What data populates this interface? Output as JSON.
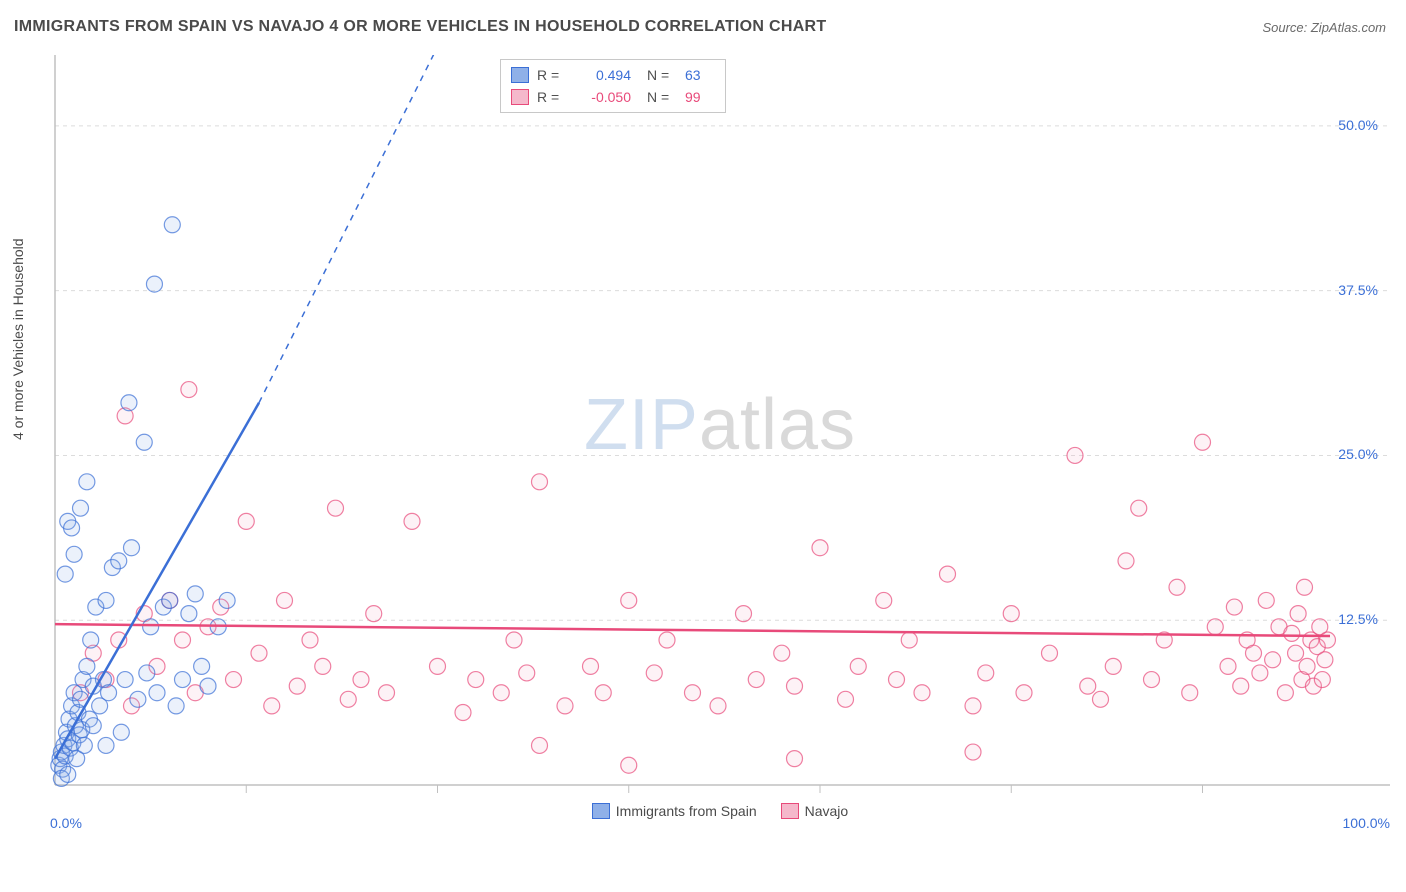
{
  "title": "IMMIGRANTS FROM SPAIN VS NAVAJO 4 OR MORE VEHICLES IN HOUSEHOLD CORRELATION CHART",
  "source": "Source: ZipAtlas.com",
  "y_axis_label": "4 or more Vehicles in Household",
  "watermark": {
    "left": "ZIP",
    "right": "atlas"
  },
  "chart": {
    "type": "scatter",
    "background_color": "#ffffff",
    "axis_line_color": "#c0c0c0",
    "grid_color": "#dcdcdc",
    "grid_dash": "4,4",
    "tick_label_color": "#3b6fd6",
    "xlim": [
      0,
      100
    ],
    "ylim": [
      0,
      55
    ],
    "x_ticks_major": [
      0,
      100
    ],
    "x_ticks_minor": [
      15,
      30,
      45,
      60,
      75,
      90
    ],
    "y_ticks": [
      12.5,
      25.0,
      37.5,
      50.0
    ],
    "x_tick_labels": [
      "0.0%",
      "100.0%"
    ],
    "y_tick_labels": [
      "12.5%",
      "25.0%",
      "37.5%",
      "50.0%"
    ],
    "marker_radius": 8,
    "marker_stroke_width": 1.2,
    "marker_fill_opacity": 0.18,
    "series": [
      {
        "name": "Immigrants from Spain",
        "color": "#3b6fd6",
        "fill": "#8fb0e8",
        "r": "0.494",
        "n": "63",
        "trend": {
          "x1": 0,
          "y1": 2,
          "x2": 16,
          "y2": 29,
          "extend_x2": 30,
          "extend_y2": 56,
          "stroke_width": 2.5,
          "dash_extend": "6,6"
        },
        "points": [
          [
            0.3,
            1.5
          ],
          [
            0.4,
            2.0
          ],
          [
            0.5,
            2.5
          ],
          [
            0.6,
            1.2
          ],
          [
            0.7,
            3.0
          ],
          [
            0.8,
            2.2
          ],
          [
            0.9,
            4.0
          ],
          [
            1.0,
            3.5
          ],
          [
            1.1,
            5.0
          ],
          [
            1.2,
            2.8
          ],
          [
            1.3,
            6.0
          ],
          [
            1.4,
            3.2
          ],
          [
            1.5,
            7.0
          ],
          [
            1.6,
            4.5
          ],
          [
            1.7,
            2.0
          ],
          [
            1.8,
            5.5
          ],
          [
            1.9,
            3.8
          ],
          [
            2.0,
            6.5
          ],
          [
            2.1,
            4.2
          ],
          [
            2.2,
            8.0
          ],
          [
            2.3,
            3.0
          ],
          [
            2.5,
            9.0
          ],
          [
            2.7,
            5.0
          ],
          [
            2.8,
            11.0
          ],
          [
            3.0,
            7.5
          ],
          [
            3.2,
            13.5
          ],
          [
            3.5,
            6.0
          ],
          [
            3.8,
            8.0
          ],
          [
            4.0,
            14.0
          ],
          [
            4.2,
            7.0
          ],
          [
            4.5,
            16.5
          ],
          [
            5.0,
            17.0
          ],
          [
            5.2,
            4.0
          ],
          [
            5.5,
            8.0
          ],
          [
            5.8,
            29.0
          ],
          [
            6.0,
            18.0
          ],
          [
            6.5,
            6.5
          ],
          [
            7.0,
            26.0
          ],
          [
            7.2,
            8.5
          ],
          [
            7.5,
            12.0
          ],
          [
            7.8,
            38.0
          ],
          [
            8.0,
            7.0
          ],
          [
            8.5,
            13.5
          ],
          [
            9.0,
            14.0
          ],
          [
            9.2,
            42.5
          ],
          [
            9.5,
            6.0
          ],
          [
            10.0,
            8.0
          ],
          [
            10.5,
            13.0
          ],
          [
            11.0,
            14.5
          ],
          [
            11.5,
            9.0
          ],
          [
            12.0,
            7.5
          ],
          [
            12.8,
            12.0
          ],
          [
            13.5,
            14.0
          ],
          [
            1.0,
            20.0
          ],
          [
            2.0,
            21.0
          ],
          [
            1.5,
            17.5
          ],
          [
            2.5,
            23.0
          ],
          [
            0.8,
            16.0
          ],
          [
            1.3,
            19.5
          ],
          [
            3.0,
            4.5
          ],
          [
            4.0,
            3.0
          ],
          [
            0.5,
            0.5
          ],
          [
            1.0,
            0.8
          ]
        ]
      },
      {
        "name": "Navajo",
        "color": "#e84a7a",
        "fill": "#f5b8cb",
        "r": "-0.050",
        "n": "99",
        "trend": {
          "x1": 0,
          "y1": 12.2,
          "x2": 100,
          "y2": 11.3,
          "stroke_width": 2.5
        },
        "points": [
          [
            2,
            7
          ],
          [
            3,
            10
          ],
          [
            4,
            8
          ],
          [
            5,
            11
          ],
          [
            5.5,
            28
          ],
          [
            6,
            6
          ],
          [
            7,
            13
          ],
          [
            8,
            9
          ],
          [
            9,
            14
          ],
          [
            10,
            11
          ],
          [
            10.5,
            30
          ],
          [
            11,
            7
          ],
          [
            12,
            12
          ],
          [
            13,
            13.5
          ],
          [
            14,
            8
          ],
          [
            15,
            20
          ],
          [
            16,
            10
          ],
          [
            17,
            6
          ],
          [
            18,
            14
          ],
          [
            19,
            7.5
          ],
          [
            20,
            11
          ],
          [
            21,
            9
          ],
          [
            22,
            21
          ],
          [
            23,
            6.5
          ],
          [
            24,
            8
          ],
          [
            25,
            13
          ],
          [
            26,
            7
          ],
          [
            28,
            20
          ],
          [
            30,
            9
          ],
          [
            32,
            5.5
          ],
          [
            33,
            8
          ],
          [
            35,
            7
          ],
          [
            36,
            11
          ],
          [
            37,
            8.5
          ],
          [
            38,
            23
          ],
          [
            40,
            6
          ],
          [
            42,
            9
          ],
          [
            43,
            7
          ],
          [
            45,
            14
          ],
          [
            47,
            8.5
          ],
          [
            48,
            11
          ],
          [
            50,
            7
          ],
          [
            52,
            6
          ],
          [
            54,
            13
          ],
          [
            55,
            8
          ],
          [
            57,
            10
          ],
          [
            58,
            7.5
          ],
          [
            60,
            18
          ],
          [
            62,
            6.5
          ],
          [
            63,
            9
          ],
          [
            65,
            14
          ],
          [
            66,
            8
          ],
          [
            67,
            11
          ],
          [
            68,
            7
          ],
          [
            70,
            16
          ],
          [
            72,
            6
          ],
          [
            73,
            8.5
          ],
          [
            75,
            13
          ],
          [
            76,
            7
          ],
          [
            78,
            10
          ],
          [
            80,
            25
          ],
          [
            81,
            7.5
          ],
          [
            82,
            6.5
          ],
          [
            83,
            9
          ],
          [
            84,
            17
          ],
          [
            85,
            21
          ],
          [
            86,
            8
          ],
          [
            87,
            11
          ],
          [
            88,
            15
          ],
          [
            89,
            7
          ],
          [
            90,
            26
          ],
          [
            91,
            12
          ],
          [
            92,
            9
          ],
          [
            92.5,
            13.5
          ],
          [
            93,
            7.5
          ],
          [
            93.5,
            11
          ],
          [
            94,
            10
          ],
          [
            94.5,
            8.5
          ],
          [
            95,
            14
          ],
          [
            95.5,
            9.5
          ],
          [
            96,
            12
          ],
          [
            96.5,
            7
          ],
          [
            97,
            11.5
          ],
          [
            97.3,
            10
          ],
          [
            97.5,
            13
          ],
          [
            97.8,
            8
          ],
          [
            98,
            15
          ],
          [
            98.2,
            9
          ],
          [
            98.5,
            11
          ],
          [
            98.7,
            7.5
          ],
          [
            99,
            10.5
          ],
          [
            99.2,
            12
          ],
          [
            99.4,
            8
          ],
          [
            99.6,
            9.5
          ],
          [
            99.8,
            11
          ],
          [
            58,
            2
          ],
          [
            45,
            1.5
          ],
          [
            38,
            3
          ],
          [
            72,
            2.5
          ]
        ]
      }
    ]
  },
  "legend_top": {
    "r_label": "R =",
    "n_label": "N ="
  },
  "legend_bottom": [
    {
      "label": "Immigrants from Spain",
      "fill": "#8fb0e8",
      "stroke": "#3b6fd6"
    },
    {
      "label": "Navajo",
      "fill": "#f5b8cb",
      "stroke": "#e84a7a"
    }
  ]
}
